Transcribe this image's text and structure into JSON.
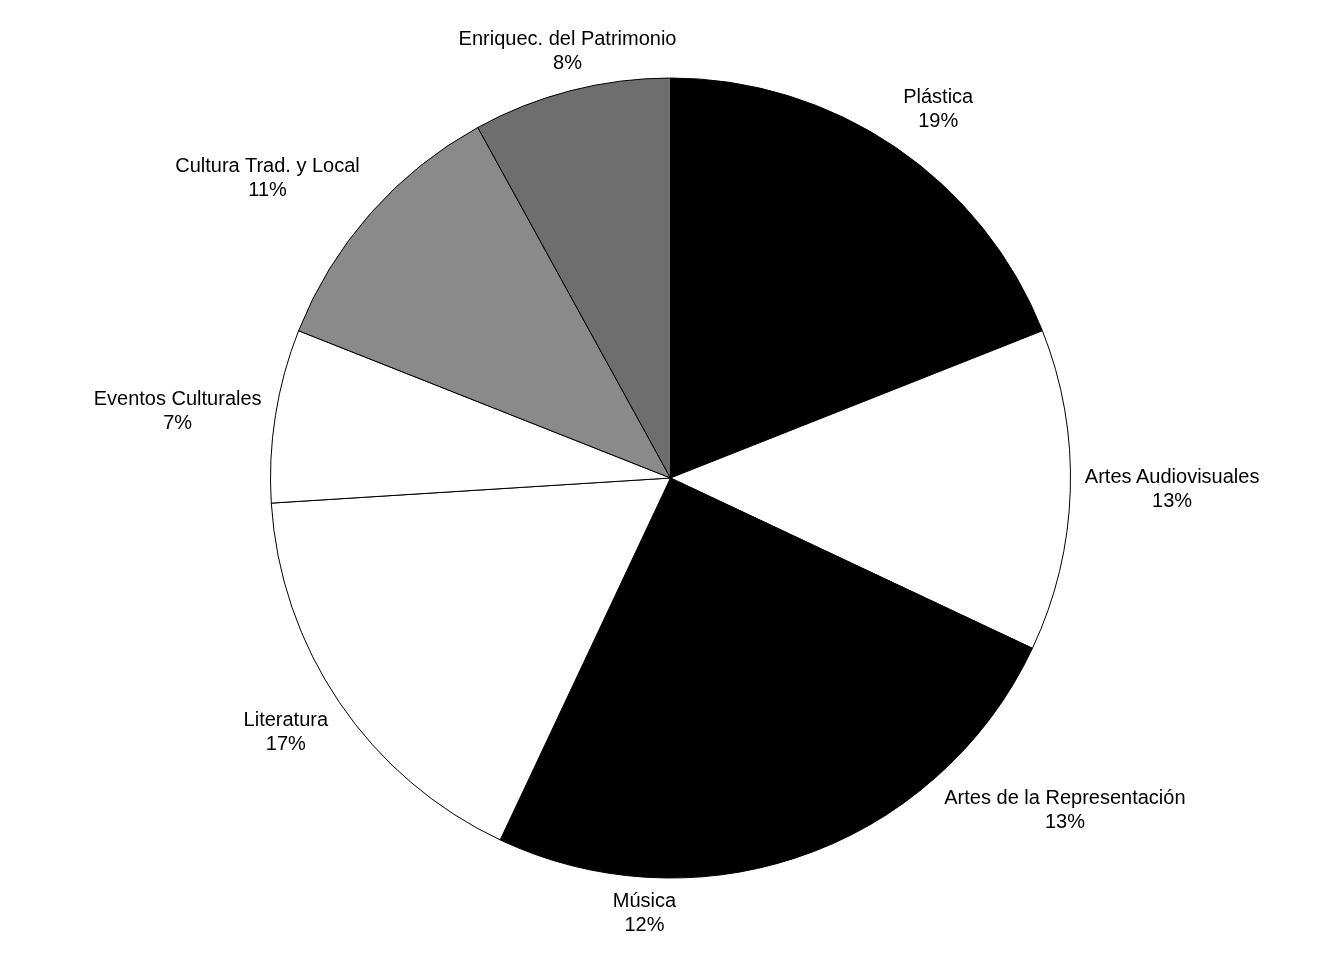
{
  "chart_data": {
    "type": "pie",
    "categories": [
      "Plástica",
      "Artes Audiovisuales",
      "Artes de la Representación",
      "Música",
      "Literatura",
      "Eventos Culturales",
      "Cultura Trad. y Local",
      "Enriquec. del Patrimonio"
    ],
    "values": [
      19,
      13,
      13,
      12,
      17,
      7,
      11,
      8
    ],
    "colors": [
      "#000000",
      "#ffffff",
      "#000000",
      "#000000",
      "#ffffff",
      "#ffffff",
      "#8a8a8a",
      "#6e6e6e"
    ],
    "value_labels": [
      "19%",
      "13%",
      "13%",
      "12%",
      "17%",
      "7%",
      "11%",
      "8%"
    ],
    "legend": false
  }
}
